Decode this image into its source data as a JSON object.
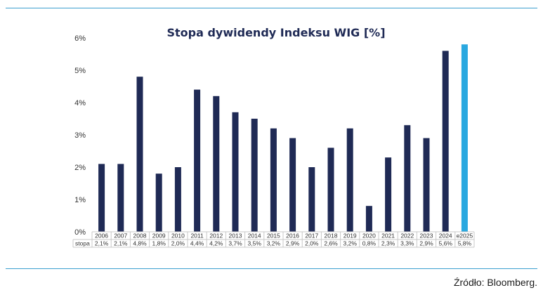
{
  "colors": {
    "accent": "#3b9fd0",
    "bar": "#1f2a55",
    "estimate_bar": "#29a8e0"
  },
  "source": "Źródło: Bloomberg.",
  "chart_data": {
    "type": "bar",
    "title": "Stopa dywidendy Indeksu WIG [%]",
    "xlabel": "",
    "ylabel": "",
    "ylim": [
      0,
      6
    ],
    "yticks": [
      "0%",
      "1%",
      "2%",
      "3%",
      "4%",
      "5%",
      "6%"
    ],
    "grid": false,
    "legend": "none",
    "categories": [
      "2006",
      "2007",
      "2008",
      "2009",
      "2010",
      "2011",
      "2012",
      "2013",
      "2014",
      "2015",
      "2016",
      "2017",
      "2018",
      "2019",
      "2020",
      "2021",
      "2022",
      "2023",
      "2024",
      "e2025"
    ],
    "series": [
      {
        "name": "stopa",
        "values": [
          2.1,
          2.1,
          4.8,
          1.8,
          2.0,
          4.4,
          4.2,
          3.7,
          3.5,
          3.2,
          2.9,
          2.0,
          2.6,
          3.2,
          0.8,
          2.3,
          3.3,
          2.9,
          5.6,
          5.8
        ]
      }
    ],
    "table_row_label": "stopa",
    "table_values": [
      "2,1%",
      "2,1%",
      "4,8%",
      "1,8%",
      "2,0%",
      "4,4%",
      "4,2%",
      "3,7%",
      "3,5%",
      "3,2%",
      "2,9%",
      "2,0%",
      "2,6%",
      "3,2%",
      "0,8%",
      "2,3%",
      "3,3%",
      "2,9%",
      "5,6%",
      "5,8%"
    ],
    "highlighted_category": "e2025"
  }
}
